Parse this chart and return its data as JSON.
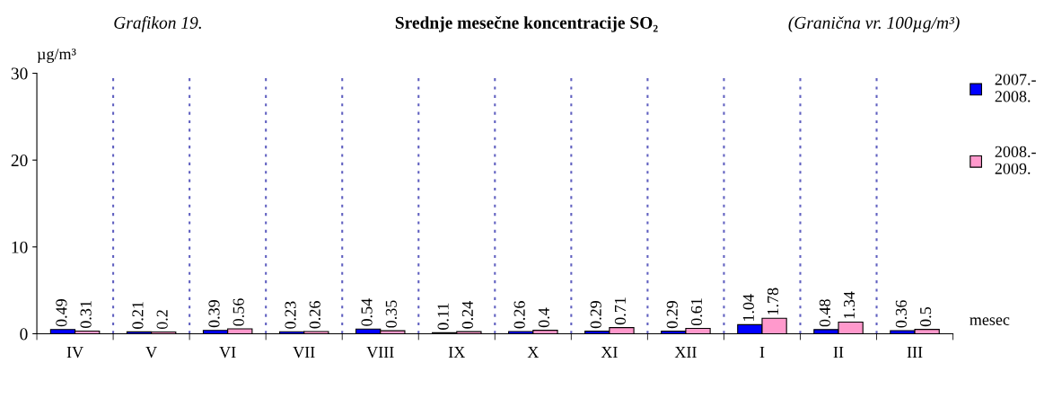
{
  "chart_data": {
    "type": "bar",
    "title": "Srednje mesečne koncentracije SO₂",
    "annotations": [
      "Grafikon 19.",
      "(Granična vr. 100µg/m³)"
    ],
    "ylabel": "µg/m³",
    "xlabel": "mesec",
    "categories": [
      "IV",
      "V",
      "VI",
      "VII",
      "VIII",
      "IX",
      "X",
      "XI",
      "XII",
      "I",
      "II",
      "III"
    ],
    "series": [
      {
        "name": "2007.-\n2008.",
        "color": "#0000ff",
        "values": [
          0.49,
          0.21,
          0.39,
          0.23,
          0.54,
          0.11,
          0.26,
          0.29,
          0.29,
          1.04,
          0.48,
          0.36
        ]
      },
      {
        "name": "2008.-\n2009.",
        "color": "#ff99cc",
        "values": [
          0.31,
          0.2,
          0.56,
          0.26,
          0.35,
          0.24,
          0.4,
          0.71,
          0.61,
          1.78,
          1.34,
          0.5
        ]
      }
    ],
    "ylim": [
      0,
      30
    ],
    "yticks": [
      0,
      10,
      20,
      30
    ],
    "grid": "x",
    "legend": "right",
    "data_labels": true
  }
}
